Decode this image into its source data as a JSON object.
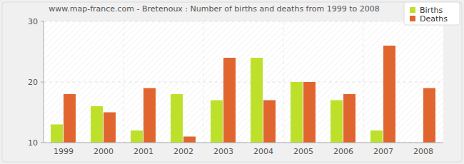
{
  "chart_data": {
    "type": "bar",
    "title": "www.map-france.com - Bretenoux : Number of births and deaths from 1999 to 2008",
    "categories": [
      "1999",
      "2000",
      "2001",
      "2002",
      "2003",
      "2004",
      "2005",
      "2006",
      "2007",
      "2008"
    ],
    "series": [
      {
        "name": "Births",
        "color": "#bde12a",
        "values": [
          13,
          16,
          12,
          18,
          17,
          24,
          20,
          17,
          12,
          10
        ]
      },
      {
        "name": "Deaths",
        "color": "#e0652f",
        "values": [
          18,
          15,
          19,
          11,
          24,
          17,
          20,
          18,
          26,
          19
        ]
      }
    ],
    "ylim": [
      10,
      30
    ],
    "yticks": [
      10,
      20,
      30
    ],
    "grid": true,
    "legend": "top-right"
  }
}
